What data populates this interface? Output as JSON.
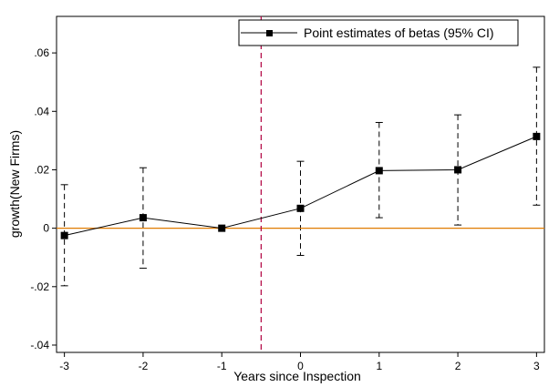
{
  "chart_data": {
    "type": "line",
    "title": "",
    "xlabel": "Years since Inspection",
    "ylabel": "growth(New Firms)",
    "x": [
      -3,
      -2,
      -1,
      0,
      1,
      2,
      3
    ],
    "x_tick_labels": [
      "-3",
      "-2",
      "-1",
      "0",
      "1",
      "2",
      "3"
    ],
    "y_ticks": [
      -0.04,
      -0.02,
      0,
      0.02,
      0.04,
      0.06
    ],
    "y_tick_labels": [
      "-.04",
      "-.02",
      "0",
      ".02",
      ".04",
      ".06"
    ],
    "xlim": [
      -3.1,
      3.1
    ],
    "ylim": [
      -0.0425,
      0.0725
    ],
    "grid": false,
    "legend_position": "top-right",
    "series": [
      {
        "name": "Point estimates of betas (95% CI)",
        "values": [
          -0.0025,
          0.0036,
          0.0,
          0.0068,
          0.0197,
          0.02,
          0.0314
        ],
        "ci_lower": [
          -0.0197,
          -0.0137,
          null,
          -0.0093,
          0.0036,
          0.0011,
          0.0079
        ],
        "ci_upper": [
          0.0149,
          0.0207,
          null,
          0.0229,
          0.0362,
          0.0388,
          0.0551
        ],
        "color": "#000000"
      }
    ],
    "reference_lines": [
      {
        "orientation": "horizontal",
        "value": 0,
        "color": "#e07b00",
        "style": "solid"
      },
      {
        "orientation": "vertical",
        "value": -0.5,
        "color": "#b00040",
        "style": "dashed"
      }
    ]
  }
}
